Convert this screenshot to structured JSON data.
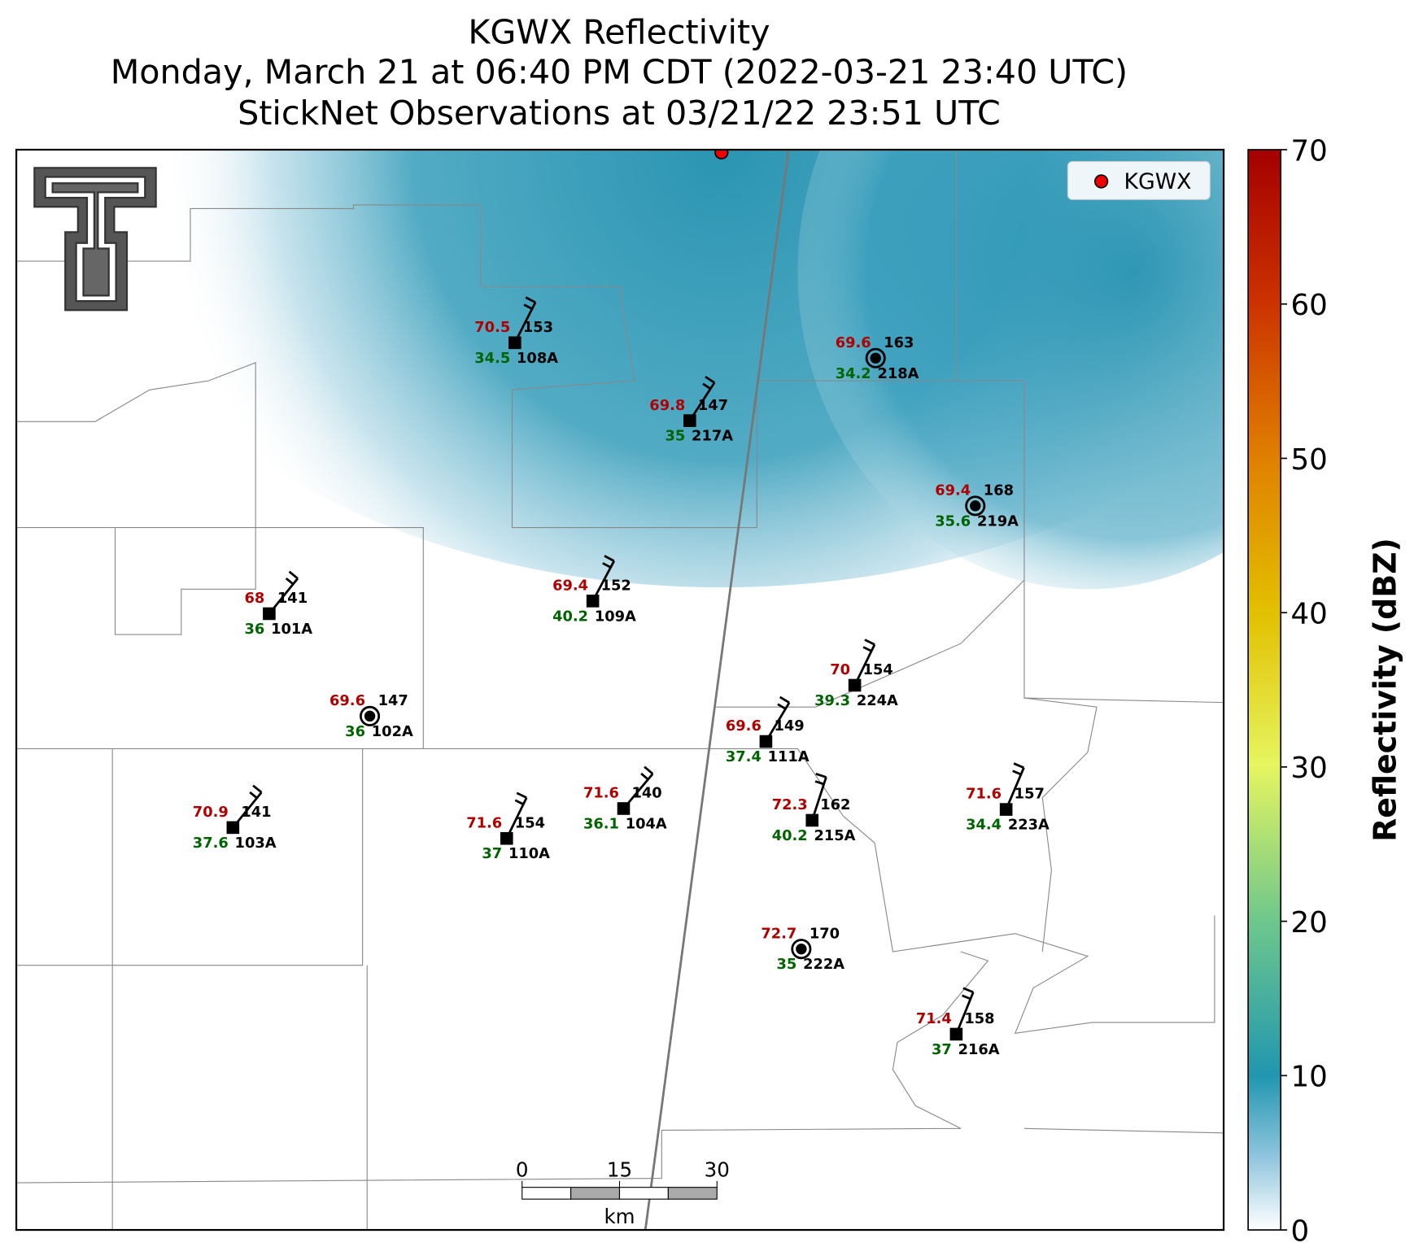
{
  "title": [
    "KGWX Reflectivity",
    "Monday, March 21 at 06:40 PM CDT (2022-03-21 23:40 UTC)",
    "StickNet Observations at 03/21/22 23:51 UTC"
  ],
  "legend": "KGWX",
  "colorbar": {
    "label": "Reflectivity (dBZ)",
    "ticks": [
      0,
      10,
      20,
      30,
      40,
      50,
      60,
      70
    ]
  },
  "scale_bar": {
    "ticks": [
      0,
      15,
      30
    ],
    "unit": "km"
  },
  "stations": [
    {
      "id": "108A",
      "temperature": 70.5,
      "direction": 153,
      "dewpoint": 34.5
    },
    {
      "id": "218A",
      "temperature": 69.6,
      "direction": 163,
      "dewpoint": 34.2
    },
    {
      "id": "217A",
      "temperature": 69.8,
      "direction": 147,
      "dewpoint": 35.0
    },
    {
      "id": "219A",
      "temperature": 69.4,
      "direction": 168,
      "dewpoint": 35.6
    },
    {
      "id": "109A",
      "temperature": 69.4,
      "direction": 152,
      "dewpoint": 40.2
    },
    {
      "id": "101A",
      "temperature": 68.0,
      "direction": 141,
      "dewpoint": 36.0
    },
    {
      "id": "224A",
      "temperature": 70.0,
      "direction": 154,
      "dewpoint": 39.3
    },
    {
      "id": "102A",
      "temperature": 69.6,
      "direction": 147,
      "dewpoint": 36.0
    },
    {
      "id": "111A",
      "temperature": 69.6,
      "direction": 149,
      "dewpoint": 37.4
    },
    {
      "id": "104A",
      "temperature": 71.6,
      "direction": 140,
      "dewpoint": 36.1
    },
    {
      "id": "223A",
      "temperature": 71.6,
      "direction": 157,
      "dewpoint": 34.4
    },
    {
      "id": "103A",
      "temperature": 70.9,
      "direction": 141,
      "dewpoint": 37.6
    },
    {
      "id": "215A",
      "temperature": 72.3,
      "direction": 162,
      "dewpoint": 40.2
    },
    {
      "id": "110A",
      "temperature": 71.6,
      "direction": 154,
      "dewpoint": 37.0
    },
    {
      "id": "222A",
      "temperature": 72.7,
      "direction": 170,
      "dewpoint": 35.0
    },
    {
      "id": "216A",
      "temperature": 71.4,
      "direction": 158,
      "dewpoint": 37.0
    }
  ]
}
